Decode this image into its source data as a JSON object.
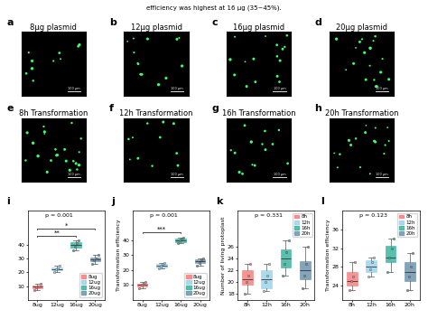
{
  "caption": "efficiency was highest at 16 μg (35~45%).",
  "images": [
    {
      "label": "a",
      "title": "8μg plasmid",
      "scale_bar": "100 μm"
    },
    {
      "label": "b",
      "title": "12μg plasmid",
      "scale_bar": "100 μm"
    },
    {
      "label": "c",
      "title": "16μg plasmid",
      "scale_bar": "100 μm"
    },
    {
      "label": "d",
      "title": "20μg plasmid",
      "scale_bar": "100 μm"
    },
    {
      "label": "e",
      "title": "8h Transformation",
      "scale_bar": "100 μm"
    },
    {
      "label": "f",
      "title": "12h Transformation",
      "scale_bar": "100 μm"
    },
    {
      "label": "g",
      "title": "16h Transformation",
      "scale_bar": "100 μm"
    },
    {
      "label": "h",
      "title": "20h Transformation",
      "scale_bar": "100 μm"
    }
  ],
  "chart_data": [
    {
      "panel_label": "i",
      "type": "box",
      "annotation": "p = 0.001",
      "legend": "lower right",
      "categories": [
        "8ug",
        "12ug",
        "16ug",
        "20ug"
      ],
      "ylim": [
        0,
        65
      ],
      "yticks": [
        10,
        20,
        30,
        40
      ],
      "comparisons": [
        {
          "from": "8ug",
          "to": "16ug",
          "label": "**"
        },
        {
          "from": "8ug",
          "to": "20ug",
          "label": "*"
        }
      ],
      "series": [
        {
          "name": "8ug",
          "color": "#f4817f",
          "min": 7,
          "q1": 8.5,
          "median": 9.5,
          "q3": 10.5,
          "max": 12,
          "points": [
            7,
            9,
            10,
            12
          ]
        },
        {
          "name": "12ug",
          "color": "#9fd3ea",
          "min": 20,
          "q1": 21.5,
          "median": 22.5,
          "q3": 23.5,
          "max": 25,
          "points": [
            20,
            22,
            23,
            25
          ]
        },
        {
          "name": "16ug",
          "color": "#3db5a0",
          "min": 36,
          "q1": 38,
          "median": 40,
          "q3": 42,
          "max": 43,
          "points": [
            36,
            39,
            41,
            43
          ]
        },
        {
          "name": "20ug",
          "color": "#6f95ad",
          "min": 26,
          "q1": 28,
          "median": 29.5,
          "q3": 31,
          "max": 33,
          "points": [
            26,
            29,
            30,
            33
          ]
        }
      ]
    },
    {
      "panel_label": "j",
      "type": "box",
      "annotation": "p = 0.001",
      "legend": "lower right",
      "ylabel": "Transformation efficiency",
      "categories": [
        "8ug",
        "12ug",
        "16ug",
        "20ug"
      ],
      "ylim": [
        0,
        60
      ],
      "yticks": [
        10,
        20,
        30,
        40
      ],
      "comparisons": [
        {
          "from": "8ug",
          "to": "16ug",
          "label": "***"
        }
      ],
      "series": [
        {
          "name": "8ug",
          "color": "#f4817f",
          "min": 8,
          "q1": 9,
          "median": 10,
          "q3": 11,
          "max": 12,
          "points": [
            8,
            10,
            11,
            12
          ]
        },
        {
          "name": "12ug",
          "color": "#9fd3ea",
          "min": 21,
          "q1": 22,
          "median": 23,
          "q3": 24,
          "max": 25,
          "points": [
            21,
            23,
            24,
            25
          ]
        },
        {
          "name": "16ug",
          "color": "#3db5a0",
          "min": 38,
          "q1": 39,
          "median": 40,
          "q3": 41,
          "max": 42,
          "points": [
            38,
            40,
            41,
            42
          ]
        },
        {
          "name": "20ug",
          "color": "#6f95ad",
          "min": 23,
          "q1": 24.5,
          "median": 26,
          "q3": 27,
          "max": 28,
          "points": [
            23,
            25,
            27,
            28
          ]
        }
      ]
    },
    {
      "panel_label": "k",
      "type": "box",
      "annotation": "p = 0.331",
      "legend": "upper right",
      "ylabel": "Number of living protoplast",
      "categories": [
        "8h",
        "12h",
        "16h",
        "20h"
      ],
      "ylim": [
        17,
        32
      ],
      "yticks": [
        18,
        20,
        22,
        24,
        26
      ],
      "series": [
        {
          "name": "8h",
          "color": "#f4817f",
          "min": 18,
          "q1": 19.5,
          "median": 20.5,
          "q3": 22,
          "max": 23,
          "points": [
            18,
            20,
            21,
            23
          ]
        },
        {
          "name": "12h",
          "color": "#9fd3ea",
          "min": 18.5,
          "q1": 19,
          "median": 20.5,
          "q3": 22,
          "max": 23,
          "points": [
            18.5,
            20,
            21,
            23
          ]
        },
        {
          "name": "16h",
          "color": "#3db5a0",
          "min": 21,
          "q1": 22.5,
          "median": 24,
          "q3": 25.5,
          "max": 27,
          "points": [
            21,
            23,
            25,
            27
          ]
        },
        {
          "name": "20h",
          "color": "#6f95ad",
          "min": 19,
          "q1": 20.5,
          "median": 22,
          "q3": 23.5,
          "max": 26,
          "points": [
            19,
            21,
            23,
            26
          ]
        }
      ]
    },
    {
      "panel_label": "l",
      "type": "box",
      "annotation": "p = 0.123",
      "legend": "upper right",
      "ylabel": "Transformation efficiency",
      "categories": [
        "8h",
        "12h",
        "16h",
        "20h"
      ],
      "ylim": [
        21,
        40
      ],
      "yticks": [
        24,
        28,
        32,
        36
      ],
      "series": [
        {
          "name": "8h",
          "color": "#f4817f",
          "min": 23,
          "q1": 24,
          "median": 25,
          "q3": 27,
          "max": 29,
          "points": [
            23,
            25,
            26,
            29
          ]
        },
        {
          "name": "12h",
          "color": "#9fd3ea",
          "min": 26,
          "q1": 27,
          "median": 28,
          "q3": 29.5,
          "max": 30,
          "points": [
            26,
            27.5,
            29,
            30
          ]
        },
        {
          "name": "16h",
          "color": "#3db5a0",
          "min": 27,
          "q1": 29,
          "median": 30,
          "q3": 32.5,
          "max": 34,
          "points": [
            27,
            30,
            32,
            34
          ]
        },
        {
          "name": "20h",
          "color": "#6f95ad",
          "min": 23,
          "q1": 25,
          "median": 27,
          "q3": 29,
          "max": 31,
          "points": [
            23,
            26,
            28,
            31
          ]
        }
      ]
    }
  ]
}
